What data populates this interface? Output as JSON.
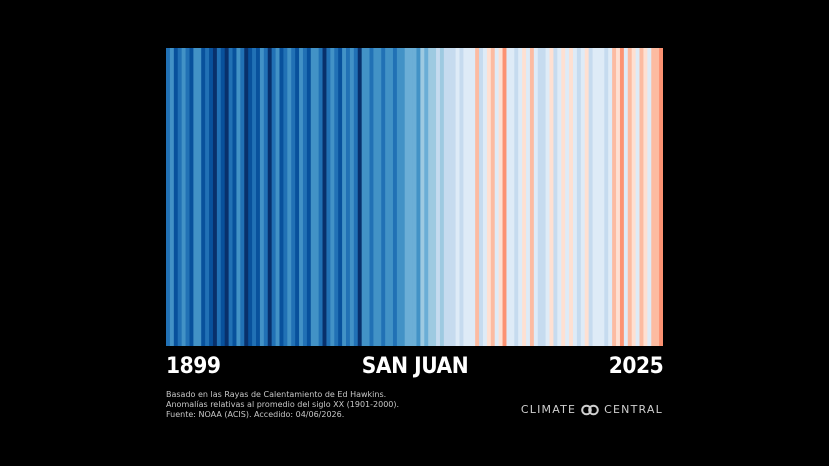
{
  "chart_data": {
    "type": "heatmap",
    "title": "SAN JUAN",
    "x": [
      1899,
      2025
    ],
    "x_start_label": "1899",
    "x_end_label": "2025",
    "anomaly_levels": [
      -2,
      -1,
      -3,
      -2,
      -1,
      -2,
      -3,
      -1,
      -1,
      -3,
      -2,
      -3,
      -4,
      -2,
      -3,
      -4,
      -2,
      -3,
      -1,
      -2,
      -4,
      -3,
      -2,
      -3,
      -1,
      -2,
      -4,
      -2,
      -1,
      -3,
      -2,
      -1,
      -2,
      -3,
      -1,
      -2,
      -3,
      -1,
      -1,
      -2,
      -4,
      -2,
      -1,
      -2,
      -3,
      -1,
      -2,
      -1,
      -2,
      -4,
      -1,
      -1,
      -2,
      -1,
      -1,
      -2,
      -1,
      -1,
      -2,
      -1,
      -1,
      0,
      0,
      0,
      -1,
      1,
      0,
      1,
      1,
      2,
      1,
      2,
      2,
      2,
      3,
      2,
      3,
      3,
      3,
      5,
      2,
      3,
      4,
      5,
      3,
      4,
      6,
      3,
      3,
      2,
      3,
      4,
      3,
      5,
      3,
      2,
      2,
      3,
      4,
      2,
      3,
      4,
      3,
      4,
      3,
      2,
      3,
      4,
      2,
      3,
      3,
      3,
      2,
      3,
      5,
      4,
      6,
      3,
      5,
      4,
      3,
      5,
      4,
      3,
      5,
      5,
      6
    ],
    "scale": "-4 (coolest) to 6 (warmest), anomaly vs 20th-century average",
    "colors": [
      "#08306b",
      "#08519c",
      "#2171b5",
      "#4292c6",
      "#6baed6",
      "#9ecae1",
      "#c6dbef",
      "#deebf7",
      "#fee0d2",
      "#fcbba1",
      "#fc9272",
      "#fb6a4a",
      "#ef3b2c",
      "#cb181d",
      "#a50f15",
      "#67000d"
    ],
    "grid": false,
    "legend": "none"
  },
  "notes": {
    "line1": "Basado en las Rayas de Calentamiento de Ed Hawkins.",
    "line2": "Anomalías relativas al promedio del siglo XX (1901-2000).",
    "line3": "Fuente: NOAA (ACIS). Accedido: 04/06/2026."
  },
  "brand": {
    "left": "CLIMATE",
    "right": "CENTRAL",
    "icon": "linked-rings-icon"
  }
}
